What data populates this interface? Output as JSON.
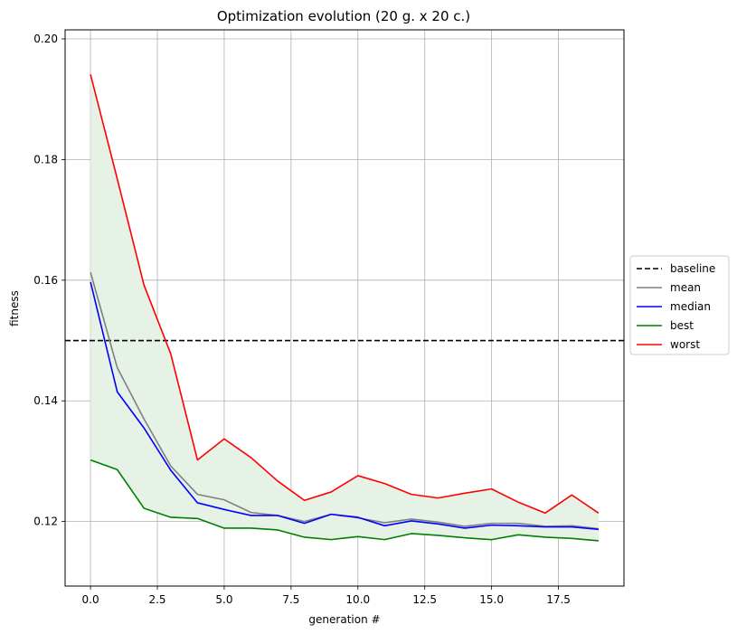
{
  "chart_data": {
    "type": "line",
    "title": "Optimization evolution (20 g. x 20 c.)",
    "xlabel": "generation #",
    "ylabel": "fitness",
    "xlim": [
      -0.95,
      19.95
    ],
    "ylim": [
      0.1093,
      0.2015
    ],
    "xticks": [
      0.0,
      2.5,
      5.0,
      7.5,
      10.0,
      12.5,
      15.0,
      17.5
    ],
    "xtick_labels": [
      "0.0",
      "2.5",
      "5.0",
      "7.5",
      "10.0",
      "12.5",
      "15.0",
      "17.5"
    ],
    "yticks": [
      0.12,
      0.14,
      0.16,
      0.18,
      0.2
    ],
    "ytick_labels": [
      "0.12",
      "0.14",
      "0.16",
      "0.18",
      "0.20"
    ],
    "grid": true,
    "legend_position": "center-right-outside",
    "x": [
      0,
      1,
      2,
      3,
      4,
      5,
      6,
      7,
      8,
      9,
      10,
      11,
      12,
      13,
      14,
      15,
      16,
      17,
      18,
      19
    ],
    "baseline": {
      "name": "baseline",
      "value": 0.15,
      "color": "#000000",
      "style": "dashed"
    },
    "series": [
      {
        "name": "mean",
        "color": "#808080",
        "values": [
          0.1613,
          0.1455,
          0.137,
          0.1292,
          0.1245,
          0.1236,
          0.1215,
          0.121,
          0.12,
          0.1212,
          0.1206,
          0.1198,
          0.1204,
          0.1199,
          0.1192,
          0.1197,
          0.1197,
          0.1192,
          0.1193,
          0.1188
        ]
      },
      {
        "name": "median",
        "color": "#0000ff",
        "values": [
          0.1597,
          0.1415,
          0.1355,
          0.1285,
          0.1231,
          0.122,
          0.121,
          0.121,
          0.1197,
          0.1212,
          0.1207,
          0.1193,
          0.1201,
          0.1196,
          0.1189,
          0.1194,
          0.1193,
          0.1191,
          0.1191,
          0.1187
        ]
      },
      {
        "name": "best",
        "color": "#008000",
        "values": [
          0.1302,
          0.1286,
          0.1222,
          0.1207,
          0.1205,
          0.1189,
          0.1189,
          0.1186,
          0.1174,
          0.117,
          0.1175,
          0.117,
          0.118,
          0.1177,
          0.1173,
          0.117,
          0.1178,
          0.1174,
          0.1172,
          0.1168
        ]
      },
      {
        "name": "worst",
        "color": "#ff0000",
        "values": [
          0.1941,
          0.1768,
          0.1592,
          0.1478,
          0.1302,
          0.1337,
          0.1306,
          0.1267,
          0.1235,
          0.1249,
          0.1276,
          0.1263,
          0.1245,
          0.1239,
          0.1247,
          0.1254,
          0.1232,
          0.1214,
          0.1244,
          0.1214
        ]
      }
    ],
    "fill_between": {
      "lower": "best",
      "upper": "worst",
      "color": "#e5f2e5"
    }
  }
}
